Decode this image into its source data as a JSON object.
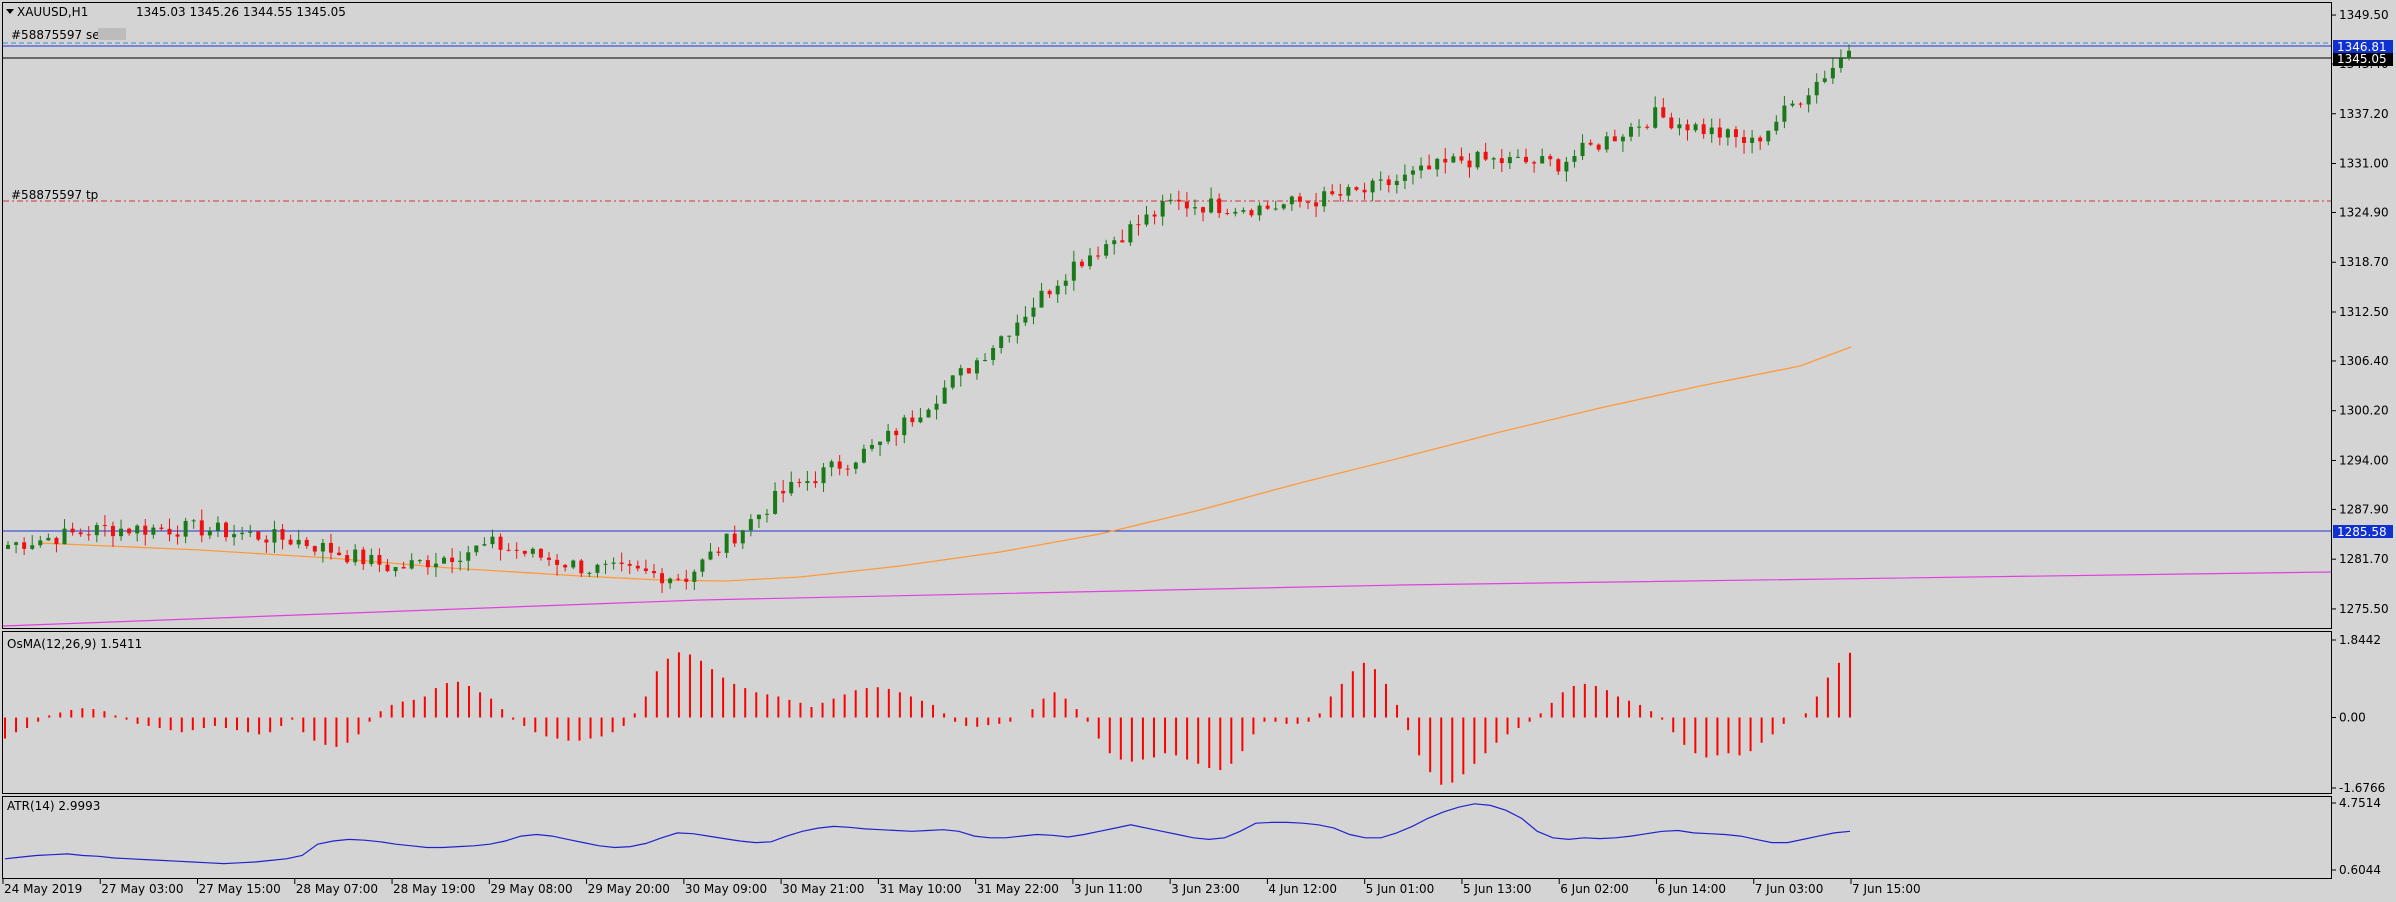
{
  "main_header": {
    "symbol": "XAUUSD,H1",
    "ohlc": "1345.03 1345.26 1344.55 1345.05"
  },
  "order_labels": {
    "sell": "#58875597 sell",
    "tp": "#58875597 tp"
  },
  "price_axis": {
    "ticks": [
      "1349.50",
      "1343.40",
      "1337.20",
      "1331.00",
      "1324.90",
      "1318.70",
      "1312.50",
      "1306.40",
      "1300.20",
      "1294.00",
      "1287.90",
      "1281.70",
      "1275.50"
    ],
    "ask_label": "1346.81",
    "bid_label": "1345.05",
    "hline_label": "1285.58"
  },
  "osma": {
    "title": "OsMA(12,26,9) 1.5411",
    "ticks": [
      "1.8442",
      "0.00",
      "-1.6766"
    ]
  },
  "atr": {
    "title": "ATR(14) 2.9993",
    "ticks": [
      "4.7514",
      "0.6044"
    ]
  },
  "time_axis": [
    "24 May 2019",
    "27 May 03:00",
    "27 May 15:00",
    "28 May 07:00",
    "28 May 19:00",
    "29 May 08:00",
    "29 May 20:00",
    "30 May 09:00",
    "30 May 21:00",
    "31 May 10:00",
    "31 May 22:00",
    "3 Jun 11:00",
    "3 Jun 23:00",
    "4 Jun 12:00",
    "5 Jun 01:00",
    "5 Jun 13:00",
    "6 Jun 02:00",
    "6 Jun 14:00",
    "7 Jun 03:00",
    "7 Jun 15:00"
  ],
  "colors": {
    "background": "#d4d4d4",
    "bull": "#1a7a1a",
    "bear": "#ee1111",
    "ma_orange": "#ff9a3c",
    "ma_magenta": "#e040e0",
    "hline_blue": "#2233cc",
    "tp_line": "#cc3333",
    "osma_bar": "#ff0000",
    "atr_line": "#2222cc"
  },
  "chart_data": [
    {
      "type": "candlestick",
      "title": "XAUUSD,H1",
      "ylim": [
        1273.0,
        1351.0
      ],
      "x_range": [
        "24 May 2019",
        "7 Jun 15:00"
      ],
      "key_closes": [
        {
          "x": "24 May 2019",
          "y": 1283.5
        },
        {
          "x": "27 May 03:00",
          "y": 1285.5
        },
        {
          "x": "27 May 15:00",
          "y": 1285.5
        },
        {
          "x": "28 May 07:00",
          "y": 1284.0
        },
        {
          "x": "28 May 19:00",
          "y": 1280.5
        },
        {
          "x": "29 May 08:00",
          "y": 1283.5
        },
        {
          "x": "29 May 20:00",
          "y": 1280.5
        },
        {
          "x": "30 May 09:00",
          "y": 1279.5
        },
        {
          "x": "30 May 21:00",
          "y": 1290.0
        },
        {
          "x": "31 May 10:00",
          "y": 1296.0
        },
        {
          "x": "31 May 22:00",
          "y": 1306.5
        },
        {
          "x": "3 Jun 11:00",
          "y": 1318.5
        },
        {
          "x": "3 Jun 23:00",
          "y": 1326.0
        },
        {
          "x": "4 Jun 12:00",
          "y": 1325.5
        },
        {
          "x": "5 Jun 01:00",
          "y": 1327.5
        },
        {
          "x": "5 Jun 13:00",
          "y": 1331.5
        },
        {
          "x": "6 Jun 02:00",
          "y": 1331.0
        },
        {
          "x": "6 Jun 14:00",
          "y": 1337.0
        },
        {
          "x": "7 Jun 03:00",
          "y": 1333.5
        },
        {
          "x": "7 Jun 15:00",
          "y": 1345.05
        }
      ],
      "last_candle": {
        "open": 1345.03,
        "high": 1345.26,
        "low": 1344.55,
        "close": 1345.05
      },
      "horizontal_lines": [
        {
          "name": "ask",
          "y": 1346.81
        },
        {
          "name": "sell",
          "y": 1345.9
        },
        {
          "name": "tp",
          "y": 1327.4
        },
        {
          "name": "level",
          "y": 1285.58
        }
      ],
      "grid": false
    },
    {
      "type": "bar",
      "title": "OsMA(12,26,9) 1.5411",
      "ylim": [
        -1.6766,
        1.8442
      ],
      "values": [
        -0.5,
        -0.35,
        -0.25,
        -0.1,
        0.05,
        0.12,
        0.18,
        0.22,
        0.2,
        0.15,
        0.05,
        -0.05,
        -0.15,
        -0.2,
        -0.25,
        -0.3,
        -0.35,
        -0.3,
        -0.25,
        -0.2,
        -0.25,
        -0.3,
        -0.35,
        -0.4,
        -0.35,
        -0.2,
        -0.05,
        -0.35,
        -0.55,
        -0.65,
        -0.7,
        -0.6,
        -0.4,
        -0.1,
        0.15,
        0.3,
        0.38,
        0.42,
        0.5,
        0.7,
        0.82,
        0.85,
        0.75,
        0.6,
        0.45,
        0.2,
        -0.05,
        -0.2,
        -0.35,
        -0.45,
        -0.5,
        -0.55,
        -0.55,
        -0.5,
        -0.45,
        -0.35,
        -0.2,
        0.1,
        0.5,
        1.1,
        1.4,
        1.55,
        1.5,
        1.35,
        1.15,
        0.95,
        0.8,
        0.7,
        0.6,
        0.55,
        0.5,
        0.42,
        0.35,
        0.25,
        0.35,
        0.45,
        0.55,
        0.65,
        0.7,
        0.72,
        0.68,
        0.6,
        0.5,
        0.4,
        0.3,
        0.1,
        -0.1,
        -0.2,
        -0.22,
        -0.18,
        -0.15,
        -0.1,
        0.0,
        0.2,
        0.45,
        0.6,
        0.45,
        0.2,
        -0.1,
        -0.5,
        -0.85,
        -1.0,
        -1.05,
        -1.0,
        -0.95,
        -0.85,
        -0.9,
        -1.0,
        -1.1,
        -1.2,
        -1.25,
        -1.1,
        -0.8,
        -0.4,
        -0.1,
        -0.1,
        -0.15,
        -0.15,
        -0.1,
        0.1,
        0.5,
        0.8,
        1.1,
        1.3,
        1.15,
        0.8,
        0.3,
        -0.3,
        -0.9,
        -1.3,
        -1.6,
        -1.55,
        -1.35,
        -1.1,
        -0.85,
        -0.6,
        -0.4,
        -0.25,
        -0.1,
        0.1,
        0.35,
        0.6,
        0.75,
        0.8,
        0.75,
        0.65,
        0.5,
        0.4,
        0.3,
        0.15,
        -0.05,
        -0.35,
        -0.65,
        -0.85,
        -0.95,
        -0.9,
        -0.85,
        -0.9,
        -0.8,
        -0.6,
        -0.4,
        -0.15,
        0.0,
        0.1,
        0.5,
        0.95,
        1.3,
        1.5411
      ]
    },
    {
      "type": "line",
      "title": "ATR(14) 2.9993",
      "ylim": [
        0.6044,
        4.7514
      ],
      "values": [
        1.3,
        1.4,
        1.5,
        1.55,
        1.6,
        1.5,
        1.45,
        1.35,
        1.3,
        1.25,
        1.2,
        1.15,
        1.1,
        1.05,
        1.0,
        1.05,
        1.1,
        1.2,
        1.3,
        1.5,
        2.2,
        2.4,
        2.5,
        2.45,
        2.35,
        2.2,
        2.1,
        2.0,
        2.0,
        2.05,
        2.1,
        2.2,
        2.4,
        2.7,
        2.8,
        2.7,
        2.5,
        2.3,
        2.1,
        2.0,
        2.05,
        2.25,
        2.6,
        2.9,
        2.85,
        2.7,
        2.55,
        2.4,
        2.3,
        2.35,
        2.7,
        3.0,
        3.2,
        3.3,
        3.25,
        3.15,
        3.1,
        3.05,
        3.0,
        3.05,
        3.1,
        3.0,
        2.7,
        2.6,
        2.6,
        2.7,
        2.8,
        2.75,
        2.65,
        2.8,
        3.0,
        3.2,
        3.4,
        3.2,
        3.0,
        2.8,
        2.6,
        2.5,
        2.6,
        3.0,
        3.5,
        3.55,
        3.55,
        3.5,
        3.4,
        3.2,
        2.8,
        2.6,
        2.6,
        2.9,
        3.3,
        3.8,
        4.2,
        4.5,
        4.7,
        4.6,
        4.3,
        3.8,
        3.0,
        2.6,
        2.5,
        2.6,
        2.55,
        2.6,
        2.7,
        2.85,
        3.0,
        3.05,
        2.9,
        2.85,
        2.8,
        2.7,
        2.5,
        2.3,
        2.3,
        2.5,
        2.7,
        2.9,
        3.0
      ]
    }
  ]
}
